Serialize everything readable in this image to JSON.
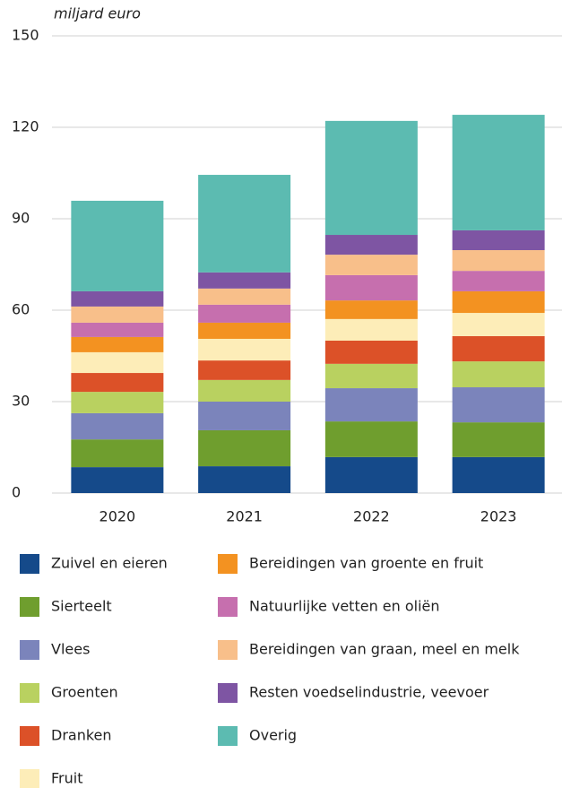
{
  "chart_data": {
    "type": "stacked_bar",
    "y_axis_label": "miljard euro",
    "categories": [
      "2020",
      "2021",
      "2022",
      "2023"
    ],
    "ylim": [
      0,
      150
    ],
    "yticks": [
      0,
      30,
      60,
      90,
      120,
      150
    ],
    "grid": true,
    "series": [
      {
        "name": "Zuivel en eieren",
        "color": "#154a8a",
        "values": [
          8.5,
          8.8,
          11.8,
          11.8
        ]
      },
      {
        "name": "Sierteelt",
        "color": "#6f9e2e",
        "values": [
          9.1,
          11.8,
          11.7,
          11.4
        ]
      },
      {
        "name": "Vlees",
        "color": "#7b84bb",
        "values": [
          8.6,
          9.4,
          10.9,
          11.5
        ]
      },
      {
        "name": "Groenten",
        "color": "#b9d160",
        "values": [
          7.0,
          7.1,
          8.0,
          8.5
        ]
      },
      {
        "name": "Dranken",
        "color": "#dc5128",
        "values": [
          6.2,
          6.4,
          7.6,
          8.3
        ]
      },
      {
        "name": "Fruit",
        "color": "#fdedb8",
        "values": [
          6.8,
          7.1,
          7.1,
          7.6
        ]
      },
      {
        "name": "Bereidingen van groente en fruit",
        "color": "#f39221",
        "values": [
          5.0,
          5.3,
          6.1,
          7.1
        ]
      },
      {
        "name": "Natuurlijke vetten en oliën",
        "color": "#c66fae",
        "values": [
          4.7,
          5.9,
          8.3,
          6.7
        ]
      },
      {
        "name": "Bereidingen van graan, meel en melk",
        "color": "#f8bf8a",
        "values": [
          5.3,
          5.3,
          6.7,
          6.8
        ]
      },
      {
        "name": "Resten voedselindustrie, veevoer",
        "color": "#7e55a3",
        "values": [
          5.0,
          5.3,
          6.5,
          6.5
        ]
      },
      {
        "name": "Overig",
        "color": "#5cbbb1",
        "values": [
          29.7,
          32.0,
          37.4,
          37.9
        ]
      }
    ]
  }
}
